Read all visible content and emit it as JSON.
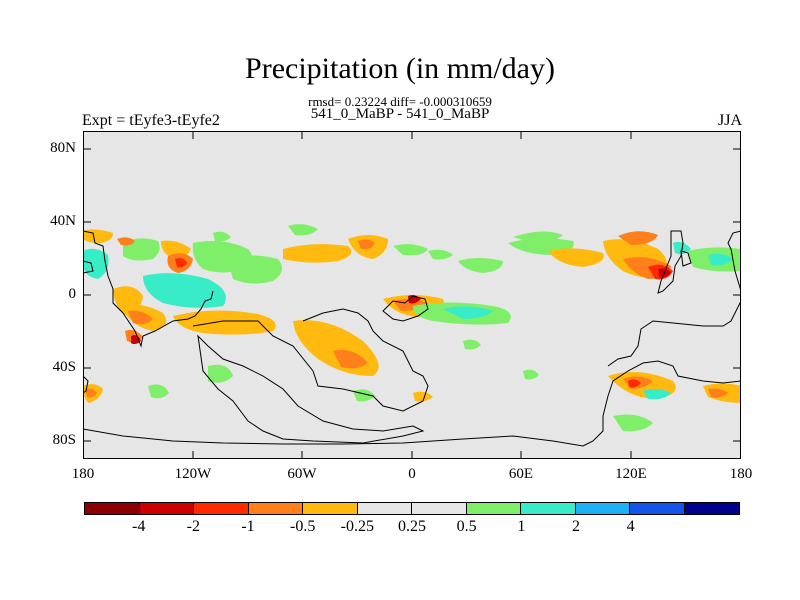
{
  "title": "Precipitation (in mm/day)",
  "subtitle_line1": "rmsd= 0.23224 diff= -0.000310659",
  "subtitle_line2": "541_0_MaBP - 541_0_MaBP",
  "left_label": "Expt = tEyfe3-tEyfe2",
  "right_label": "JJA",
  "y_ticks": [
    "80N",
    "40N",
    "0",
    "40S",
    "80S"
  ],
  "x_ticks": [
    "180",
    "120W",
    "60W",
    "0",
    "60E",
    "120E",
    "180"
  ],
  "colorbar": {
    "colors": [
      "#8b0000",
      "#cc0000",
      "#ff2a00",
      "#ff7f1a",
      "#ffb90f",
      "#e6e6e6",
      "#e6e6e6",
      "#7fef6a",
      "#38ecc8",
      "#1cb0f5",
      "#1554e8",
      "#00008b"
    ],
    "labels": [
      "-4",
      "-2",
      "-1",
      "-0.5",
      "-0.25",
      "0.25",
      "0.5",
      "1",
      "2",
      "4"
    ]
  },
  "colors": {
    "background": "#e6e6e6",
    "dark_red": "#cc0000",
    "red": "#ff2a00",
    "orange": "#ff7f1a",
    "yellow_orange": "#ffb90f",
    "green": "#7fef6a",
    "cyan": "#38ecc8",
    "light_blue": "#1cb0f5"
  }
}
